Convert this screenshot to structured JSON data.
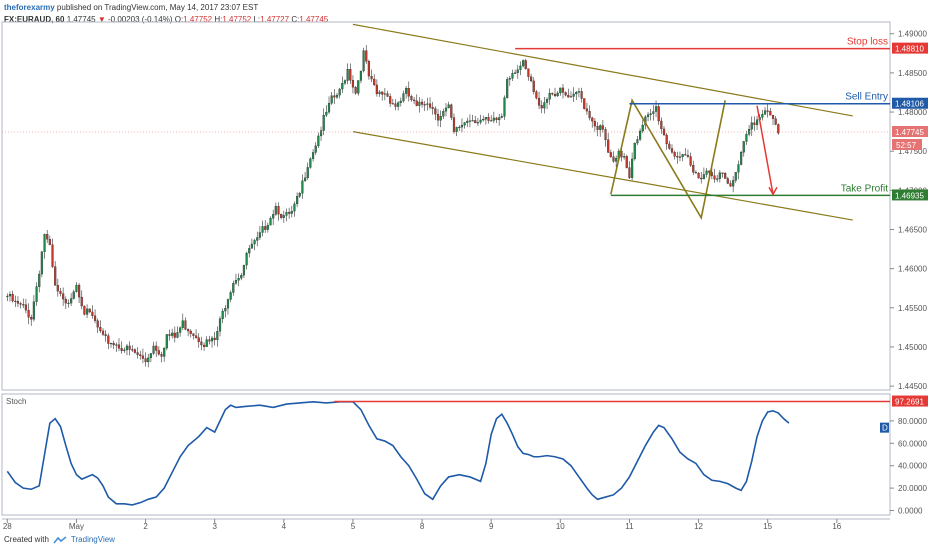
{
  "header": {
    "publisher": "theforexarmy",
    "published_text": "published on TradingView.com, May 14, 2017 23:07 EST",
    "symbol": "FX:EURAUD, 60",
    "last": "1.47745",
    "change": "-0.00203 (-0.14%)",
    "o_label": "O:",
    "o_value": "1.47752",
    "h_label": "H:",
    "h_value": "1.47752",
    "l_label": "L:",
    "l_value": "1.47727",
    "c_label": "C:",
    "c_value": "1.47745"
  },
  "footer": {
    "created_with": "Created with",
    "brand": "TradingView"
  },
  "chart_data": [
    {
      "type": "candlestick",
      "ylim": [
        1.4445,
        1.4915
      ],
      "y_ticks": [
        1.445,
        1.45,
        1.455,
        1.46,
        1.465,
        1.47,
        1.475,
        1.48,
        1.485,
        1.49
      ],
      "y_tick_labels": [
        "1.44500",
        "1.45000",
        "1.45500",
        "1.46000",
        "1.46500",
        "1.47000",
        "1.47500",
        "1.48000",
        "1.48500",
        "1.49000"
      ],
      "x_ticks": [
        {
          "label": "28",
          "t": 0
        },
        {
          "label": "May",
          "t": 26
        },
        {
          "label": "2",
          "t": 52
        },
        {
          "label": "3",
          "t": 78
        },
        {
          "label": "4",
          "t": 104
        },
        {
          "label": "5",
          "t": 130
        },
        {
          "label": "8",
          "t": 156
        },
        {
          "label": "9",
          "t": 182
        },
        {
          "label": "10",
          "t": 208
        },
        {
          "label": "11",
          "t": 234
        },
        {
          "label": "12",
          "t": 260
        },
        {
          "label": "15",
          "t": 286
        },
        {
          "label": "16",
          "t": 312
        }
      ],
      "x_range": [
        -2,
        332
      ],
      "close_path": [
        [
          0,
          1.4565
        ],
        [
          3,
          1.4555
        ],
        [
          6,
          1.455
        ],
        [
          9,
          1.4538
        ],
        [
          12,
          1.4598
        ],
        [
          14,
          1.4645
        ],
        [
          16,
          1.4625
        ],
        [
          18,
          1.4575
        ],
        [
          22,
          1.4552
        ],
        [
          26,
          1.4582
        ],
        [
          29,
          1.4545
        ],
        [
          32,
          1.4538
        ],
        [
          36,
          1.451
        ],
        [
          40,
          1.4505
        ],
        [
          44,
          1.4498
        ],
        [
          48,
          1.4492
        ],
        [
          52,
          1.4482
        ],
        [
          55,
          1.4502
        ],
        [
          58,
          1.4492
        ],
        [
          60,
          1.4515
        ],
        [
          63,
          1.4512
        ],
        [
          66,
          1.453
        ],
        [
          70,
          1.4518
        ],
        [
          74,
          1.4505
        ],
        [
          78,
          1.4508
        ],
        [
          82,
          1.4555
        ],
        [
          85,
          1.4585
        ],
        [
          88,
          1.4595
        ],
        [
          91,
          1.4625
        ],
        [
          94,
          1.4635
        ],
        [
          97,
          1.4655
        ],
        [
          101,
          1.468
        ],
        [
          104,
          1.4665
        ],
        [
          107,
          1.467
        ],
        [
          110,
          1.4695
        ],
        [
          113,
          1.4735
        ],
        [
          116,
          1.476
        ],
        [
          119,
          1.479
        ],
        [
          122,
          1.4815
        ],
        [
          125,
          1.4825
        ],
        [
          128,
          1.4855
        ],
        [
          131,
          1.4825
        ],
        [
          134,
          1.4875
        ],
        [
          136,
          1.4845
        ],
        [
          139,
          1.4822
        ],
        [
          142,
          1.4825
        ],
        [
          146,
          1.4808
        ],
        [
          150,
          1.4825
        ],
        [
          154,
          1.4805
        ],
        [
          158,
          1.4815
        ],
        [
          162,
          1.4795
        ],
        [
          166,
          1.4805
        ],
        [
          168,
          1.4772
        ],
        [
          171,
          1.4785
        ],
        [
          174,
          1.4792
        ],
        [
          178,
          1.479
        ],
        [
          182,
          1.4785
        ],
        [
          186,
          1.4795
        ],
        [
          188,
          1.4845
        ],
        [
          191,
          1.4855
        ],
        [
          194,
          1.486
        ],
        [
          197,
          1.4835
        ],
        [
          200,
          1.4805
        ],
        [
          204,
          1.4825
        ],
        [
          208,
          1.4825
        ],
        [
          212,
          1.4815
        ],
        [
          215,
          1.4825
        ],
        [
          218,
          1.4802
        ],
        [
          221,
          1.4785
        ],
        [
          224,
          1.4775
        ],
        [
          226,
          1.4748
        ],
        [
          228,
          1.4732
        ],
        [
          230,
          1.4745
        ],
        [
          232,
          1.4745
        ],
        [
          234,
          1.472
        ],
        [
          236,
          1.4765
        ],
        [
          238,
          1.4772
        ],
        [
          240,
          1.479
        ],
        [
          242,
          1.4795
        ],
        [
          244,
          1.4805
        ],
        [
          246,
          1.478
        ],
        [
          248,
          1.4762
        ],
        [
          250,
          1.475
        ],
        [
          252,
          1.4745
        ],
        [
          254,
          1.474
        ],
        [
          256,
          1.4738
        ],
        [
          258,
          1.4722
        ],
        [
          260,
          1.4718
        ],
        [
          263,
          1.4725
        ],
        [
          266,
          1.472
        ],
        [
          269,
          1.4718
        ],
        [
          272,
          1.4702
        ],
        [
          274,
          1.472
        ],
        [
          276,
          1.4752
        ],
        [
          278,
          1.4775
        ],
        [
          280,
          1.479
        ],
        [
          282,
          1.4788
        ],
        [
          284,
          1.4795
        ],
        [
          286,
          1.4798
        ],
        [
          288,
          1.479
        ],
        [
          289,
          1.4782
        ],
        [
          290,
          1.4775
        ]
      ],
      "levels": [
        {
          "name": "Stop loss",
          "value": 1.4881,
          "label": "1.48810",
          "color": "#e53935"
        },
        {
          "name": "Sell Entry",
          "value": 1.48106,
          "label": "1.48106",
          "color": "#1e5aa8"
        },
        {
          "name": "Take Profit",
          "value": 1.46935,
          "label": "1.46935",
          "color": "#2e7d32"
        }
      ],
      "current_price": {
        "value": 1.47745,
        "label": "1.47745",
        "countdown": "52:57",
        "color": "#e57373"
      },
      "channel": {
        "color": "#8a7a1a",
        "upper": [
          [
            130,
            1.4912
          ],
          [
            318,
            1.4795
          ]
        ],
        "lower": [
          [
            130,
            1.4775
          ],
          [
            318,
            1.4662
          ]
        ]
      },
      "zigzag": {
        "color": "#8a7a1a",
        "points": [
          [
            227,
            1.4695
          ],
          [
            235,
            1.4815
          ],
          [
            261,
            1.4665
          ],
          [
            270,
            1.4815
          ]
        ]
      },
      "projection": {
        "color": "#e53935",
        "from": [
          282,
          1.4808
        ],
        "to": [
          288,
          1.4695
        ]
      }
    },
    {
      "type": "line",
      "name": "Stoch",
      "legend_badge": "D",
      "ylim": [
        -4,
        104
      ],
      "y_ticks": [
        0,
        20,
        40,
        60,
        80
      ],
      "y_tick_labels": [
        "0.0000",
        "20.0000",
        "40.0000",
        "60.0000",
        "80.0000"
      ],
      "level": {
        "value": 97.2691,
        "label": "97.2691",
        "color": "#e53935",
        "from_t": 123
      },
      "series": [
        [
          0,
          35
        ],
        [
          3,
          25
        ],
        [
          6,
          20
        ],
        [
          9,
          19
        ],
        [
          12,
          22
        ],
        [
          14,
          50
        ],
        [
          16,
          78
        ],
        [
          18,
          82
        ],
        [
          20,
          75
        ],
        [
          22,
          58
        ],
        [
          24,
          42
        ],
        [
          26,
          32
        ],
        [
          28,
          28
        ],
        [
          30,
          30
        ],
        [
          32,
          32
        ],
        [
          34,
          29
        ],
        [
          36,
          22
        ],
        [
          38,
          12
        ],
        [
          41,
          6
        ],
        [
          44,
          6
        ],
        [
          47,
          5
        ],
        [
          50,
          7
        ],
        [
          53,
          10
        ],
        [
          56,
          12
        ],
        [
          59,
          20
        ],
        [
          62,
          34
        ],
        [
          65,
          48
        ],
        [
          68,
          58
        ],
        [
          72,
          66
        ],
        [
          75,
          74
        ],
        [
          78,
          70
        ],
        [
          80,
          80
        ],
        [
          82,
          90
        ],
        [
          84,
          94
        ],
        [
          86,
          92
        ],
        [
          90,
          93
        ],
        [
          95,
          94
        ],
        [
          100,
          92
        ],
        [
          105,
          95
        ],
        [
          110,
          96
        ],
        [
          115,
          97
        ],
        [
          120,
          96
        ],
        [
          125,
          97
        ],
        [
          130,
          97
        ],
        [
          133,
          90
        ],
        [
          136,
          76
        ],
        [
          139,
          64
        ],
        [
          142,
          62
        ],
        [
          145,
          58
        ],
        [
          148,
          48
        ],
        [
          151,
          40
        ],
        [
          154,
          28
        ],
        [
          157,
          15
        ],
        [
          160,
          10
        ],
        [
          163,
          22
        ],
        [
          166,
          30
        ],
        [
          170,
          32
        ],
        [
          174,
          30
        ],
        [
          178,
          26
        ],
        [
          180,
          42
        ],
        [
          182,
          68
        ],
        [
          184,
          82
        ],
        [
          186,
          86
        ],
        [
          188,
          78
        ],
        [
          190,
          68
        ],
        [
          192,
          57
        ],
        [
          194,
          51
        ],
        [
          196,
          50
        ],
        [
          198,
          48
        ],
        [
          200,
          48
        ],
        [
          203,
          49
        ],
        [
          206,
          48
        ],
        [
          209,
          46
        ],
        [
          212,
          40
        ],
        [
          215,
          30
        ],
        [
          218,
          20
        ],
        [
          220,
          14
        ],
        [
          222,
          10
        ],
        [
          225,
          12
        ],
        [
          228,
          14
        ],
        [
          231,
          20
        ],
        [
          234,
          30
        ],
        [
          237,
          44
        ],
        [
          240,
          58
        ],
        [
          243,
          70
        ],
        [
          245,
          76
        ],
        [
          247,
          74
        ],
        [
          250,
          64
        ],
        [
          253,
          52
        ],
        [
          256,
          46
        ],
        [
          259,
          42
        ],
        [
          262,
          32
        ],
        [
          265,
          27
        ],
        [
          268,
          26
        ],
        [
          271,
          24
        ],
        [
          274,
          20
        ],
        [
          276,
          18
        ],
        [
          278,
          26
        ],
        [
          280,
          44
        ],
        [
          282,
          66
        ],
        [
          284,
          80
        ],
        [
          286,
          88
        ],
        [
          288,
          89
        ],
        [
          290,
          87
        ],
        [
          292,
          82
        ],
        [
          294,
          78
        ]
      ]
    }
  ]
}
